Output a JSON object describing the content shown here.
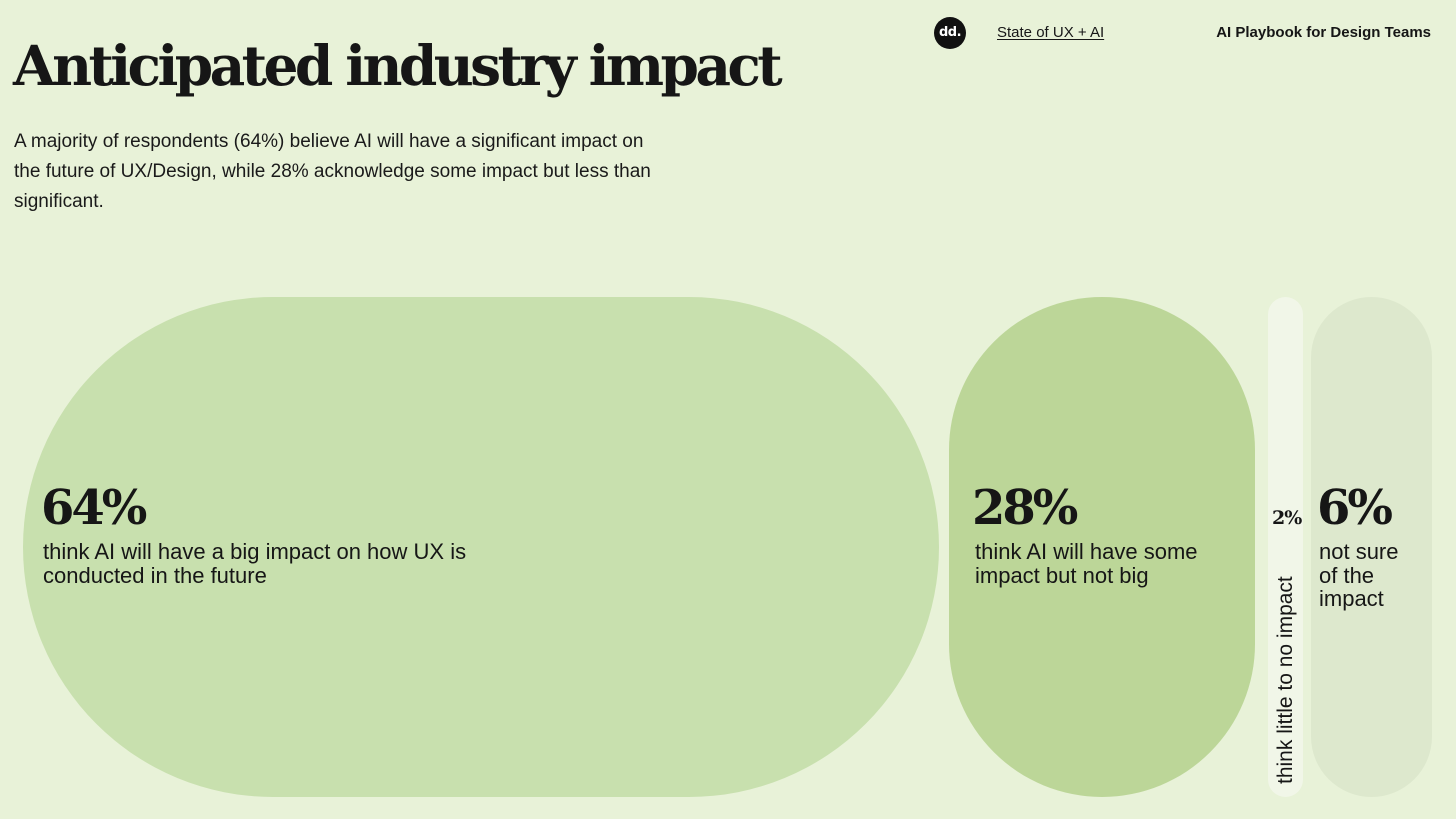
{
  "header": {
    "logo_text": "dd.",
    "nav_link": "State of UX + AI",
    "doc_title": "AI Playbook for Design Teams"
  },
  "page": {
    "title": "Anticipated industry impact",
    "subtitle": "A majority of respondents (64%) believe AI will have a significant impact on the future of UX/Design, while 28% acknowledge some impact but less than significant."
  },
  "colors": {
    "background": "#e8f2d8",
    "big_impact": "#c8e0ae",
    "some_impact": "#bcd698",
    "little_impact": "#f1f6e8",
    "not_sure": "#dde8cd"
  },
  "chart_data": {
    "type": "bar",
    "title": "Anticipated industry impact",
    "categories": [
      "think AI will have a big impact on how UX is conducted in the future",
      "think AI will have some impact but not big",
      "think little to no impact",
      "not sure of the impact"
    ],
    "values": [
      64,
      28,
      2,
      6
    ],
    "value_labels": [
      "64%",
      "28%",
      "2%",
      "6%"
    ],
    "unit": "%"
  }
}
